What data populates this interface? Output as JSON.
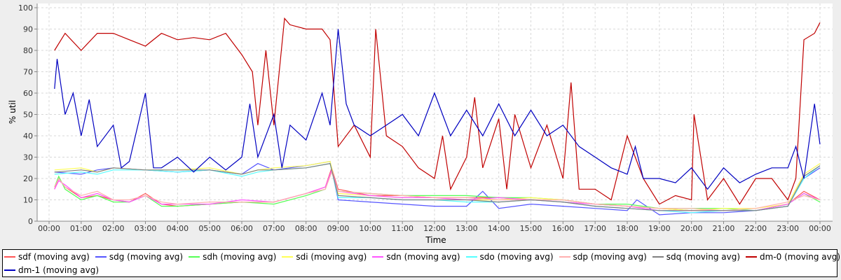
{
  "chart_data": {
    "type": "line",
    "xlabel": "Time",
    "ylabel": "% util",
    "ylim": [
      0,
      100
    ],
    "xlim_hours": [
      -0.3,
      24.3
    ],
    "yticks": [
      0,
      10,
      20,
      30,
      40,
      50,
      60,
      70,
      80,
      90,
      100
    ],
    "xtick_labels": [
      "00:00",
      "01:00",
      "02:00",
      "03:00",
      "04:00",
      "05:00",
      "06:00",
      "07:00",
      "08:00",
      "09:00",
      "10:00",
      "11:00",
      "12:00",
      "13:00",
      "14:00",
      "15:00",
      "16:00",
      "17:00",
      "18:00",
      "19:00",
      "20:00",
      "21:00",
      "22:00",
      "23:00",
      "00:00"
    ],
    "grid": true,
    "legend_position": "bottom",
    "series": [
      {
        "name": "sdf (moving avg)",
        "color": "#ff5555",
        "x": [
          0.17,
          0.3,
          0.5,
          1,
          1.5,
          2,
          2.5,
          3,
          3.5,
          4,
          5,
          6,
          7,
          8,
          8.6,
          8.8,
          9,
          10,
          11,
          12,
          13,
          14,
          15,
          16,
          17,
          18,
          19,
          20,
          21,
          22,
          23,
          23.5,
          24
        ],
        "y": [
          15,
          20,
          16,
          11,
          12,
          10,
          9,
          13,
          8,
          7,
          8,
          9,
          9,
          13,
          16,
          25,
          15,
          12,
          12,
          11,
          11,
          11,
          10,
          10,
          8,
          7,
          6,
          5,
          5,
          5,
          8,
          14,
          10
        ]
      },
      {
        "name": "sdg (moving avg)",
        "color": "#5555ff",
        "x": [
          0.17,
          1,
          1.5,
          2,
          3,
          4,
          5,
          6,
          6.5,
          7,
          8,
          8.75,
          9,
          10,
          11,
          12,
          13,
          13.5,
          14,
          15,
          16,
          17,
          18,
          18.3,
          19,
          20,
          21,
          22,
          23,
          23.5,
          24
        ],
        "y": [
          23,
          22,
          24,
          25,
          24,
          23,
          24,
          22,
          27,
          24,
          26,
          28,
          10,
          9,
          8,
          7,
          7,
          14,
          6,
          8,
          7,
          6,
          5,
          10,
          3,
          4,
          4,
          5,
          7,
          20,
          25
        ]
      },
      {
        "name": "sdh (moving avg)",
        "color": "#55ff55",
        "x": [
          0.17,
          0.3,
          0.5,
          1,
          1.5,
          2,
          2.5,
          3,
          3.5,
          4,
          5,
          6,
          7,
          8,
          8.6,
          8.8,
          9,
          10,
          11,
          12,
          13,
          14,
          15,
          16,
          17,
          18,
          19,
          20,
          21,
          22,
          23,
          23.5,
          24
        ],
        "y": [
          16,
          21,
          15,
          10,
          12,
          9,
          9,
          12,
          7,
          7,
          8,
          9,
          8,
          12,
          15,
          24,
          14,
          13,
          12,
          12,
          12,
          11,
          11,
          10,
          8,
          8,
          6,
          6,
          6,
          5,
          8,
          13,
          9
        ]
      },
      {
        "name": "sdi (moving avg)",
        "color": "#ffff55",
        "x": [
          0.17,
          1,
          1.5,
          2,
          3,
          4,
          5,
          6,
          6.5,
          7,
          8,
          8.75,
          9,
          10,
          11,
          12,
          13,
          14,
          15,
          16,
          17,
          18,
          19,
          20,
          21,
          22,
          23,
          23.5,
          24
        ],
        "y": [
          24,
          25,
          23,
          25,
          24,
          24,
          25,
          22,
          24,
          25,
          26,
          28,
          13,
          12,
          11,
          11,
          10,
          10,
          11,
          10,
          8,
          7,
          6,
          5,
          6,
          6,
          8,
          22,
          27
        ]
      },
      {
        "name": "sdn (moving avg)",
        "color": "#ff55ff",
        "x": [
          0.17,
          0.3,
          0.5,
          1,
          1.5,
          2,
          2.5,
          3,
          3.5,
          4,
          5,
          6,
          7,
          8,
          8.6,
          8.8,
          9,
          10,
          11,
          12,
          13,
          14,
          15,
          16,
          17,
          18,
          19,
          20,
          21,
          22,
          23,
          23.5,
          24
        ],
        "y": [
          15,
          19,
          17,
          11,
          13,
          10,
          9,
          12,
          8,
          8,
          8,
          10,
          9,
          13,
          16,
          24,
          14,
          12,
          11,
          11,
          10,
          11,
          10,
          9,
          8,
          7,
          5,
          5,
          5,
          5,
          8,
          13,
          10
        ]
      },
      {
        "name": "sdo (moving avg)",
        "color": "#55ffff",
        "x": [
          0.17,
          1,
          1.5,
          2,
          3,
          4,
          5,
          6,
          6.5,
          7,
          8,
          8.75,
          9,
          10,
          11,
          12,
          13,
          14,
          15,
          16,
          17,
          18,
          19,
          20,
          21,
          22,
          23,
          23.5,
          24
        ],
        "y": [
          22,
          23,
          22,
          24,
          24,
          23,
          24,
          21,
          23,
          24,
          25,
          27,
          11,
          11,
          10,
          10,
          9,
          9,
          10,
          9,
          7,
          6,
          5,
          4,
          5,
          5,
          7,
          20,
          26
        ]
      },
      {
        "name": "sdp (moving avg)",
        "color": "#ffafaf",
        "x": [
          0.17,
          0.3,
          0.5,
          1,
          1.5,
          2,
          2.5,
          3,
          3.5,
          4,
          5,
          6,
          7,
          8,
          8.6,
          8.8,
          9,
          10,
          11,
          12,
          13,
          14,
          15,
          16,
          17,
          18,
          19,
          20,
          21,
          22,
          23,
          23.5,
          24
        ],
        "y": [
          16,
          20,
          16,
          12,
          14,
          10,
          10,
          12,
          9,
          8,
          9,
          9,
          9,
          13,
          15,
          23,
          14,
          13,
          12,
          11,
          11,
          10,
          10,
          10,
          8,
          7,
          6,
          6,
          5,
          6,
          9,
          12,
          10
        ]
      },
      {
        "name": "sdq (moving avg)",
        "color": "#808080",
        "x": [
          0.17,
          1,
          1.5,
          2,
          3,
          4,
          5,
          6,
          6.5,
          7,
          8,
          8.75,
          9,
          10,
          11,
          12,
          13,
          14,
          15,
          16,
          17,
          18,
          19,
          20,
          21,
          22,
          23,
          23.5,
          24
        ],
        "y": [
          23,
          24,
          23,
          25,
          24,
          24,
          24,
          22,
          24,
          24,
          25,
          27,
          12,
          11,
          10,
          10,
          10,
          9,
          10,
          9,
          7,
          6,
          5,
          5,
          5,
          5,
          7,
          21,
          26
        ]
      },
      {
        "name": "dm-0 (moving avg)",
        "color": "#c00000",
        "x": [
          0.17,
          0.5,
          1,
          1.5,
          2,
          2.5,
          3,
          3.5,
          4,
          4.5,
          5,
          5.5,
          6,
          6.33,
          6.5,
          6.75,
          7,
          7.33,
          7.5,
          8,
          8.5,
          8.75,
          9,
          9.5,
          10,
          10.17,
          10.5,
          11,
          11.5,
          12,
          12.25,
          12.5,
          13,
          13.25,
          13.5,
          14,
          14.25,
          14.5,
          15,
          15.5,
          16,
          16.25,
          16.5,
          17,
          17.5,
          18,
          18.5,
          19,
          19.5,
          20,
          20.08,
          20.5,
          21,
          21.5,
          22,
          22.5,
          23,
          23.25,
          23.5,
          23.83,
          24
        ],
        "y": [
          80,
          88,
          80,
          88,
          88,
          85,
          82,
          88,
          85,
          86,
          85,
          88,
          78,
          70,
          45,
          80,
          45,
          95,
          92,
          90,
          90,
          85,
          35,
          45,
          30,
          90,
          40,
          35,
          25,
          20,
          40,
          15,
          30,
          58,
          25,
          48,
          15,
          50,
          25,
          45,
          20,
          65,
          15,
          15,
          10,
          40,
          20,
          8,
          12,
          10,
          50,
          10,
          20,
          8,
          20,
          20,
          10,
          20,
          85,
          88,
          93
        ]
      },
      {
        "name": "dm-1 (moving avg)",
        "color": "#0000c0",
        "x": [
          0.17,
          0.25,
          0.5,
          0.75,
          1,
          1.25,
          1.5,
          2,
          2.25,
          2.5,
          3,
          3.25,
          3.5,
          4,
          4.5,
          5,
          5.5,
          6,
          6.25,
          6.5,
          7,
          7.25,
          7.5,
          8,
          8.5,
          8.75,
          9,
          9.25,
          9.5,
          10,
          10.5,
          11,
          11.5,
          12,
          12.5,
          13,
          13.5,
          14,
          14.5,
          15,
          15.5,
          16,
          16.5,
          17,
          17.5,
          18,
          18.25,
          18.5,
          19,
          19.5,
          20,
          20.5,
          21,
          21.5,
          22,
          22.5,
          23,
          23.25,
          23.5,
          23.83,
          24
        ],
        "y": [
          62,
          76,
          50,
          60,
          40,
          57,
          35,
          45,
          25,
          28,
          60,
          25,
          25,
          30,
          23,
          30,
          24,
          30,
          55,
          30,
          50,
          25,
          45,
          38,
          60,
          45,
          90,
          55,
          45,
          40,
          45,
          50,
          40,
          60,
          40,
          52,
          40,
          55,
          40,
          52,
          40,
          45,
          35,
          30,
          25,
          22,
          35,
          20,
          20,
          18,
          25,
          15,
          25,
          18,
          22,
          25,
          25,
          35,
          20,
          55,
          36
        ]
      }
    ]
  }
}
